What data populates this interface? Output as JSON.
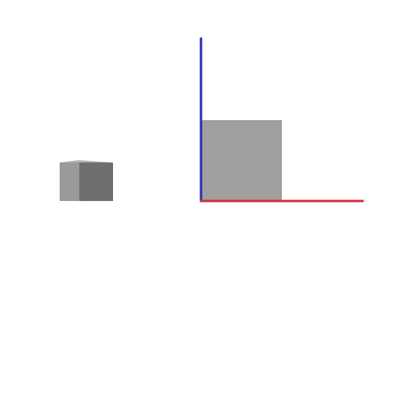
{
  "scene": {
    "background_color": "#ffffff",
    "axes": {
      "x_axis_color": "#d0303a",
      "z_axis_color": "#2b2db0"
    },
    "objects": [
      {
        "name": "cube",
        "icon": "cube-icon",
        "colors": {
          "top": "#b0b0b0",
          "left_face": "#9a9a9a",
          "right_face": "#6f6f6f"
        }
      },
      {
        "name": "square-plane",
        "icon": "square-icon",
        "colors": {
          "face": "#9f9f9f"
        }
      }
    ]
  }
}
